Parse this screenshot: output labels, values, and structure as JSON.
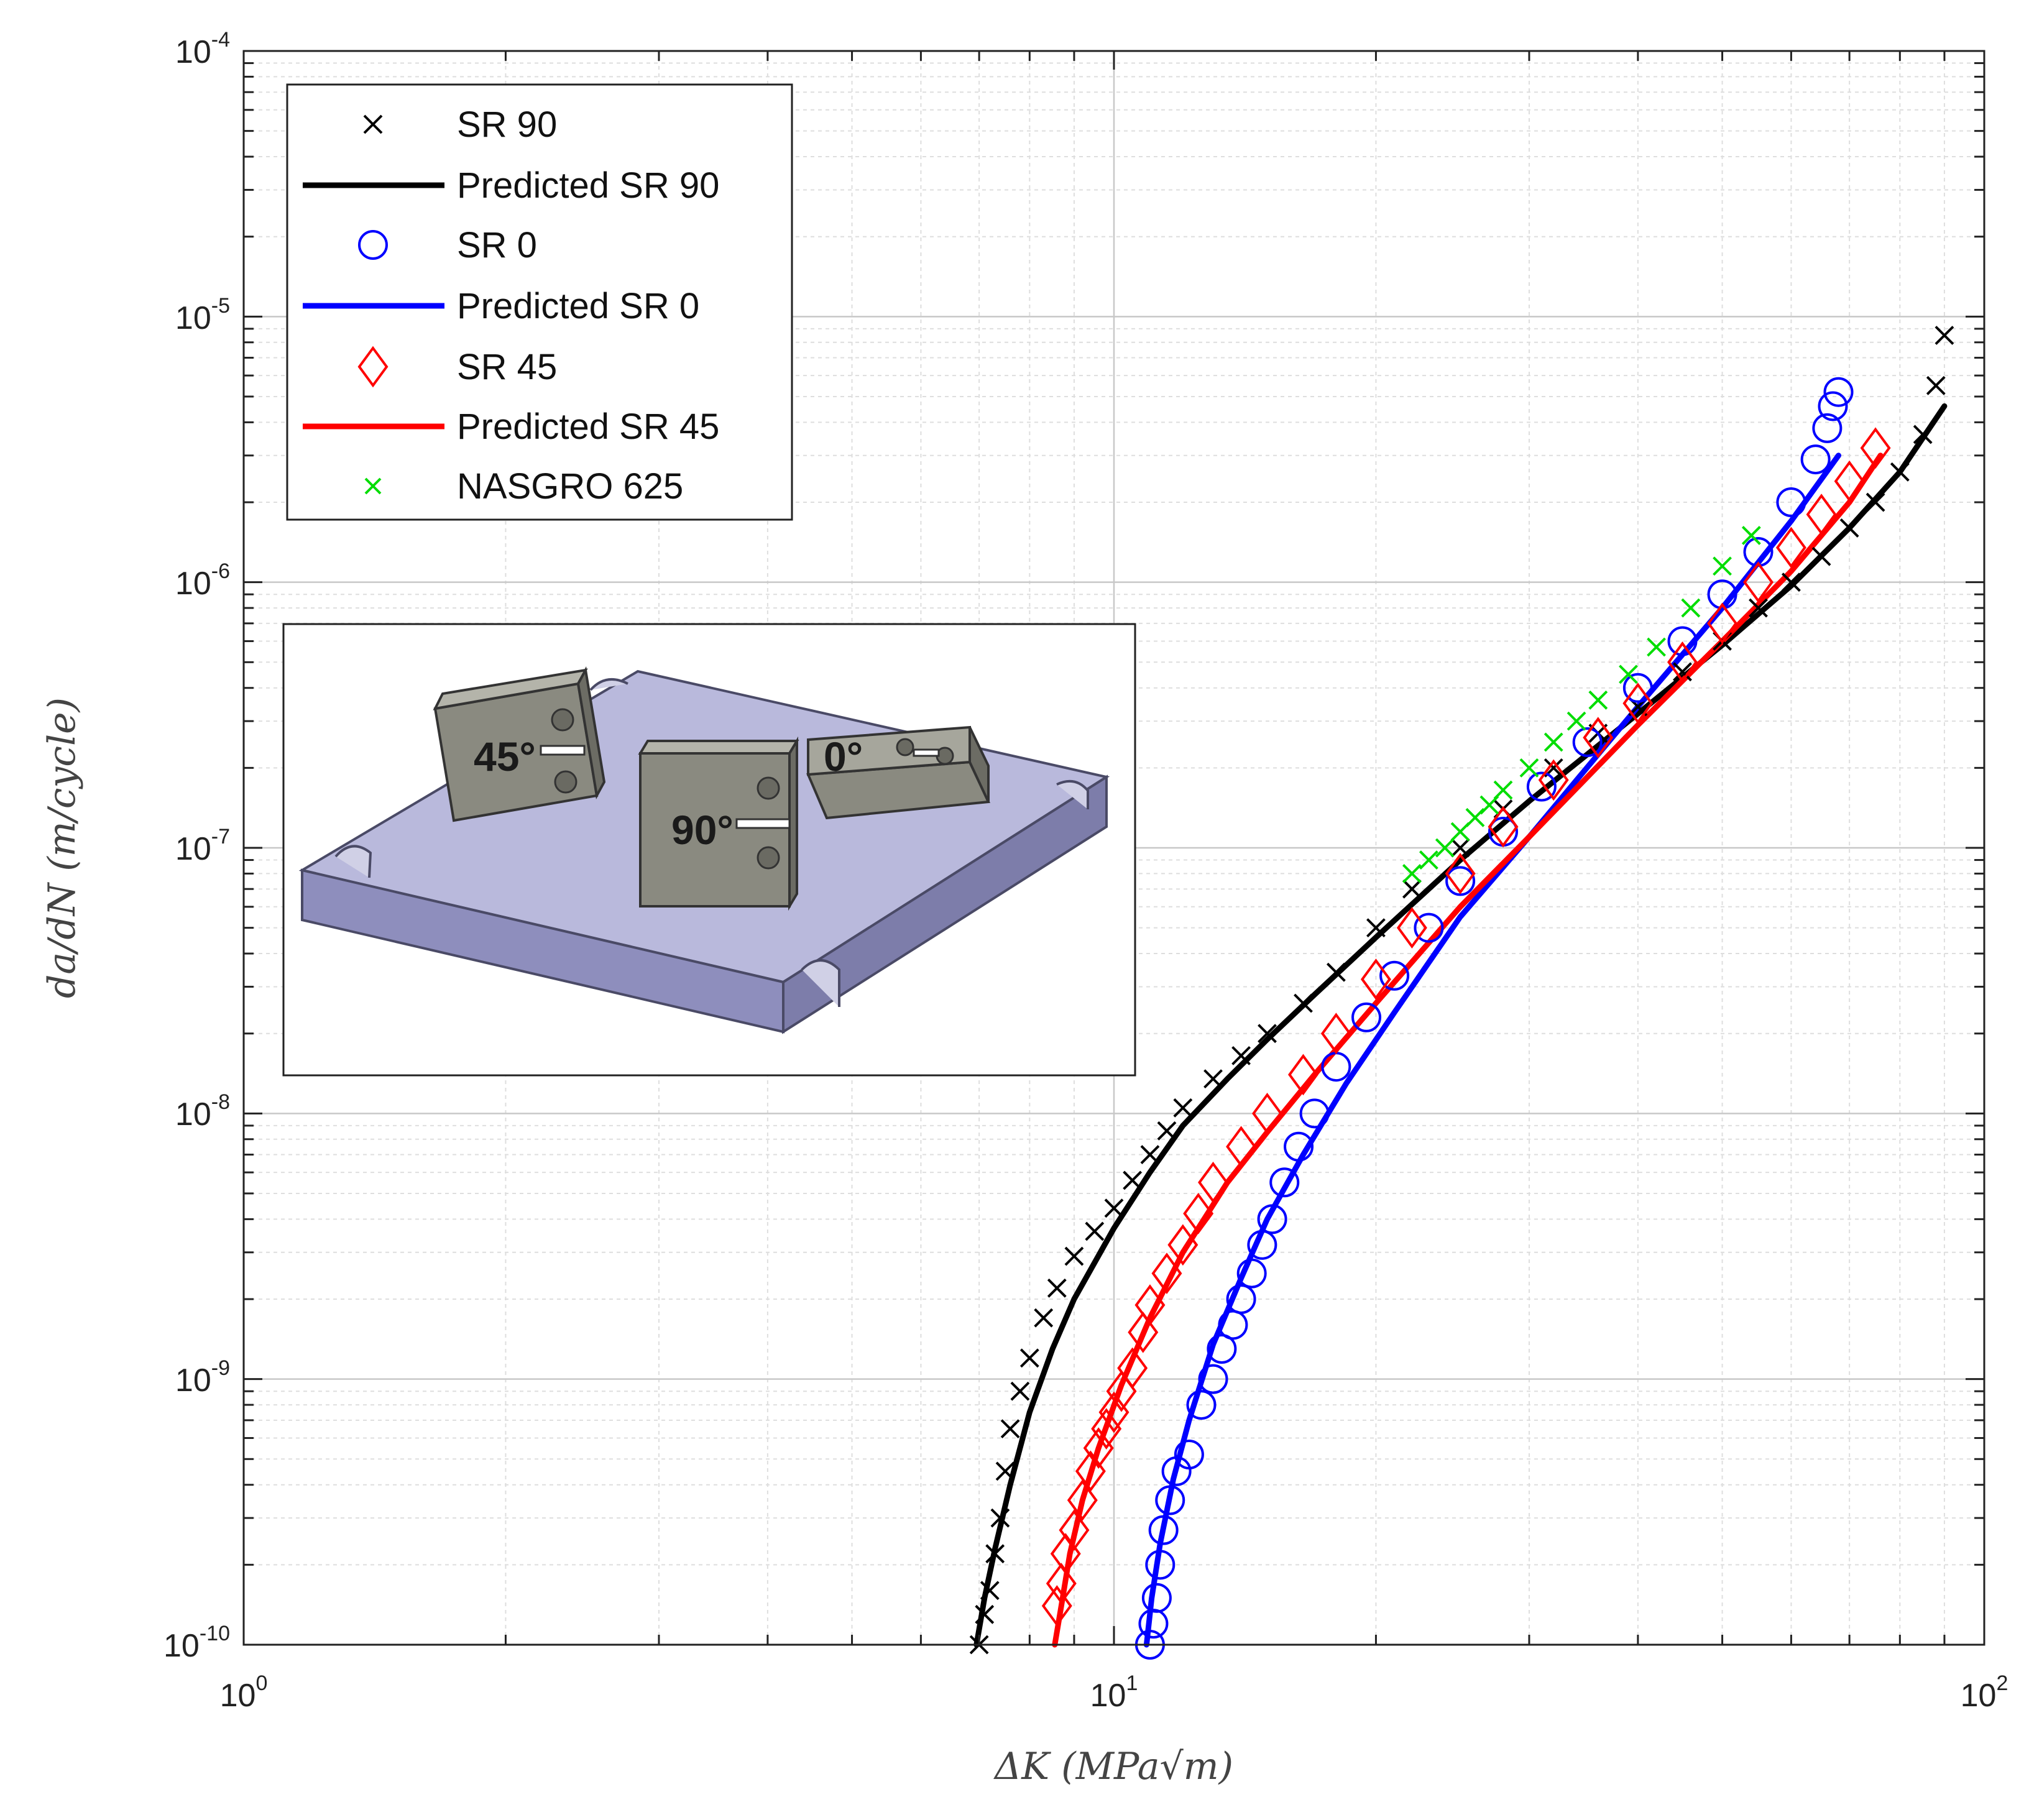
{
  "chart_data": {
    "type": "scatter",
    "xscale": "log",
    "yscale": "log",
    "xlim": [
      1,
      100
    ],
    "ylim": [
      1e-10,
      0.0001
    ],
    "grid": true,
    "minor_grid": true,
    "x_ticks": [
      {
        "base": "10",
        "exp": "0",
        "value": 1
      },
      {
        "base": "10",
        "exp": "1",
        "value": 10
      },
      {
        "base": "10",
        "exp": "2",
        "value": 100
      }
    ],
    "y_ticks": [
      {
        "base": "10",
        "exp": "-10",
        "value": 1e-10
      },
      {
        "base": "10",
        "exp": "-9",
        "value": 1e-09
      },
      {
        "base": "10",
        "exp": "-8",
        "value": 1e-08
      },
      {
        "base": "10",
        "exp": "-7",
        "value": 1e-07
      },
      {
        "base": "10",
        "exp": "-6",
        "value": 1e-06
      },
      {
        "base": "10",
        "exp": "-5",
        "value": 1e-05
      },
      {
        "base": "10",
        "exp": "-4",
        "value": 0.0001
      }
    ],
    "xlabel": "ΔK (MPa√m)",
    "ylabel": "da/dN (m/cycle)",
    "legend_position": "top-left",
    "legend": [
      {
        "label": "SR 90",
        "marker": "x",
        "color": "#000000"
      },
      {
        "label": "Predicted SR 90",
        "marker": "line",
        "color": "#000000"
      },
      {
        "label": "SR 0",
        "marker": "circle",
        "color": "#0000ff"
      },
      {
        "label": "Predicted SR 0",
        "marker": "line",
        "color": "#0000ff"
      },
      {
        "label": "SR 45",
        "marker": "diamond",
        "color": "#ff0000"
      },
      {
        "label": "Predicted SR 45",
        "marker": "line",
        "color": "#ff0000"
      },
      {
        "label": "NASGRO 625",
        "marker": "x",
        "color": "#00dd00"
      }
    ],
    "series": [
      {
        "name": "SR 90",
        "marker": "x",
        "color": "#000000",
        "x": [
          7.0,
          7.1,
          7.2,
          7.3,
          7.4,
          7.5,
          7.6,
          7.8,
          8.0,
          8.3,
          8.6,
          9.0,
          9.5,
          10.0,
          10.5,
          11.0,
          11.5,
          12.0,
          13.0,
          14.0,
          15.0,
          16.5,
          18.0,
          20.0,
          22.0,
          25.0,
          28.0,
          32.0,
          36.0,
          40.0,
          45.0,
          50.0,
          55.0,
          60.0,
          65.0,
          70.0,
          75.0,
          80.0,
          85.0,
          88.0,
          90.0
        ],
        "y": [
          1e-10,
          1.3e-10,
          1.6e-10,
          2.2e-10,
          3e-10,
          4.5e-10,
          6.5e-10,
          9e-10,
          1.2e-09,
          1.7e-09,
          2.2e-09,
          2.9e-09,
          3.6e-09,
          4.4e-09,
          5.6e-09,
          7e-09,
          8.6e-09,
          1.05e-08,
          1.35e-08,
          1.65e-08,
          2e-08,
          2.6e-08,
          3.4e-08,
          5e-08,
          7e-08,
          1e-07,
          1.4e-07,
          2e-07,
          2.7e-07,
          3.4e-07,
          4.6e-07,
          6e-07,
          8e-07,
          1e-06,
          1.25e-06,
          1.6e-06,
          2e-06,
          2.6e-06,
          3.6e-06,
          5.5e-06,
          8.5e-06
        ]
      },
      {
        "name": "Predicted SR 90",
        "marker": "line",
        "color": "#000000",
        "x": [
          6.95,
          7.1,
          7.3,
          7.6,
          8.0,
          8.5,
          9.0,
          10.0,
          11.0,
          12.0,
          13.5,
          15.0,
          17.0,
          20.0,
          25.0,
          30.0,
          40.0,
          50.0,
          60.0,
          70.0,
          80.0,
          90.0
        ],
        "y": [
          1e-10,
          1.5e-10,
          2.3e-10,
          4e-10,
          7.5e-10,
          1.3e-09,
          2e-09,
          3.7e-09,
          6e-09,
          9e-09,
          1.35e-08,
          1.9e-08,
          2.8e-08,
          4.6e-08,
          9e-08,
          1.5e-07,
          3.2e-07,
          5.8e-07,
          9.7e-07,
          1.6e-06,
          2.6e-06,
          4.6e-06
        ]
      },
      {
        "name": "SR 0",
        "marker": "circle",
        "color": "#0000ff",
        "x": [
          11.0,
          11.1,
          11.2,
          11.3,
          11.4,
          11.6,
          11.8,
          12.2,
          12.6,
          13.0,
          13.3,
          13.7,
          14.0,
          14.4,
          14.8,
          15.2,
          15.7,
          16.3,
          17.0,
          18.0,
          19.5,
          21.0,
          23.0,
          25.0,
          28.0,
          31.0,
          35.0,
          40.0,
          45.0,
          50.0,
          55.0,
          60.0,
          64.0,
          66.0,
          67.0,
          68.0
        ],
        "y": [
          1e-10,
          1.2e-10,
          1.5e-10,
          2e-10,
          2.7e-10,
          3.5e-10,
          4.5e-10,
          5.2e-10,
          8e-10,
          1e-09,
          1.3e-09,
          1.6e-09,
          2e-09,
          2.5e-09,
          3.2e-09,
          4e-09,
          5.5e-09,
          7.5e-09,
          1e-08,
          1.5e-08,
          2.3e-08,
          3.3e-08,
          5e-08,
          7.5e-08,
          1.15e-07,
          1.7e-07,
          2.5e-07,
          4e-07,
          6e-07,
          9e-07,
          1.3e-06,
          2e-06,
          2.9e-06,
          3.8e-06,
          4.6e-06,
          5.2e-06
        ]
      },
      {
        "name": "Predicted SR 0",
        "marker": "line",
        "color": "#0000ff",
        "x": [
          10.9,
          11.05,
          11.3,
          11.7,
          12.2,
          13.0,
          14.0,
          15.0,
          16.5,
          18.5,
          21.0,
          25.0,
          30.0,
          40.0,
          50.0,
          60.0,
          68.0
        ],
        "y": [
          1e-10,
          1.5e-10,
          2.4e-10,
          4.2e-10,
          7e-10,
          1.35e-09,
          2.4e-09,
          4e-09,
          7e-09,
          1.3e-08,
          2.4e-08,
          5.5e-08,
          1.1e-07,
          3.4e-07,
          8e-07,
          1.7e-06,
          3e-06
        ]
      },
      {
        "name": "SR 45",
        "marker": "diamond",
        "color": "#ff0000",
        "x": [
          8.6,
          8.7,
          8.8,
          9.0,
          9.2,
          9.4,
          9.6,
          9.8,
          10.0,
          10.2,
          10.5,
          10.8,
          11.0,
          11.5,
          12.0,
          12.5,
          13.0,
          14.0,
          15.0,
          16.5,
          18.0,
          20.0,
          22.0,
          25.0,
          28.0,
          32.0,
          36.0,
          40.0,
          45.0,
          50.0,
          55.0,
          60.0,
          65.0,
          70.0,
          75.0
        ],
        "y": [
          1.4e-10,
          1.7e-10,
          2.2e-10,
          2.7e-10,
          3.5e-10,
          4.5e-10,
          5.5e-10,
          6.5e-10,
          7.5e-10,
          9e-10,
          1.1e-09,
          1.5e-09,
          1.9e-09,
          2.5e-09,
          3.2e-09,
          4.2e-09,
          5.5e-09,
          7.5e-09,
          1e-08,
          1.4e-08,
          2e-08,
          3.2e-08,
          5e-08,
          8e-08,
          1.2e-07,
          1.8e-07,
          2.6e-07,
          3.5e-07,
          5e-07,
          7e-07,
          1e-06,
          1.35e-06,
          1.8e-06,
          2.4e-06,
          3.2e-06
        ]
      },
      {
        "name": "Predicted SR 45",
        "marker": "line",
        "color": "#ff0000",
        "x": [
          8.55,
          8.7,
          8.9,
          9.2,
          9.6,
          10.2,
          11.0,
          12.0,
          13.5,
          15.0,
          17.0,
          20.0,
          25.0,
          30.0,
          40.0,
          50.0,
          60.0,
          70.0,
          76.0
        ],
        "y": [
          1e-10,
          1.4e-10,
          2.2e-10,
          3.5e-10,
          5.5e-10,
          9.5e-10,
          1.7e-09,
          3e-09,
          5.5e-09,
          8.5e-09,
          1.4e-08,
          2.6e-08,
          6e-08,
          1.1e-07,
          2.9e-07,
          6e-07,
          1.1e-06,
          2e-06,
          3e-06
        ]
      },
      {
        "name": "NASGRO 625",
        "marker": "x",
        "color": "#00dd00",
        "x": [
          22.0,
          23.0,
          24.0,
          25.0,
          26.0,
          27.0,
          28.0,
          30.0,
          32.0,
          34.0,
          36.0,
          39.0,
          42.0,
          46.0,
          50.0,
          54.0
        ],
        "y": [
          8e-08,
          9e-08,
          1e-07,
          1.15e-07,
          1.3e-07,
          1.45e-07,
          1.65e-07,
          2e-07,
          2.5e-07,
          3e-07,
          3.6e-07,
          4.5e-07,
          5.7e-07,
          8e-07,
          1.15e-06,
          1.5e-06
        ]
      }
    ]
  },
  "inset": {
    "description_labels": [
      "45°",
      "90°",
      "0°"
    ]
  }
}
